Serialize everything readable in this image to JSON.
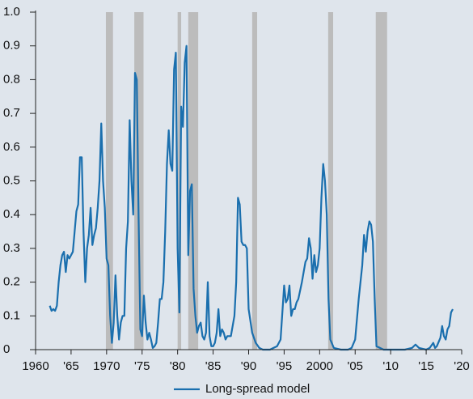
{
  "chart_data": {
    "type": "line",
    "x": [
      1962,
      1962.25,
      1962.5,
      1962.75,
      1963,
      1963.25,
      1963.5,
      1963.75,
      1964,
      1964.25,
      1964.5,
      1964.75,
      1965,
      1965.25,
      1965.5,
      1965.75,
      1966,
      1966.25,
      1966.5,
      1966.75,
      1967,
      1967.25,
      1967.5,
      1967.75,
      1968,
      1968.25,
      1968.5,
      1968.75,
      1969,
      1969.25,
      1969.5,
      1969.75,
      1970,
      1970.25,
      1970.5,
      1970.75,
      1971,
      1971.25,
      1971.5,
      1971.75,
      1972,
      1972.25,
      1972.5,
      1972.75,
      1973,
      1973.25,
      1973.5,
      1973.75,
      1974,
      1974.25,
      1974.5,
      1974.75,
      1975,
      1975.25,
      1975.5,
      1975.75,
      1976,
      1976.25,
      1976.5,
      1976.75,
      1977,
      1977.25,
      1977.5,
      1977.75,
      1978,
      1978.25,
      1978.5,
      1978.75,
      1979,
      1979.25,
      1979.5,
      1979.75,
      1980,
      1980.25,
      1980.5,
      1980.75,
      1981,
      1981.25,
      1981.5,
      1981.75,
      1982,
      1982.25,
      1982.5,
      1982.75,
      1983,
      1983.25,
      1983.5,
      1983.75,
      1984,
      1984.25,
      1984.5,
      1984.75,
      1985,
      1985.25,
      1985.5,
      1985.75,
      1986,
      1986.25,
      1986.5,
      1986.75,
      1987,
      1987.5,
      1988,
      1988.25,
      1988.5,
      1988.75,
      1989,
      1989.25,
      1989.5,
      1989.75,
      1990,
      1990.5,
      1991,
      1991.5,
      1992,
      1993,
      1993.5,
      1994,
      1994.5,
      1995,
      1995.25,
      1995.5,
      1995.75,
      1996,
      1996.25,
      1996.5,
      1996.75,
      1997,
      1997.5,
      1998,
      1998.25,
      1998.5,
      1998.75,
      1999,
      1999.25,
      1999.5,
      1999.75,
      2000,
      2000.25,
      2000.5,
      2000.75,
      2001,
      2001.25,
      2001.5,
      2002,
      2003,
      2004,
      2004.5,
      2005,
      2005.5,
      2006,
      2006.25,
      2006.5,
      2006.75,
      2007,
      2007.25,
      2007.5,
      2007.75,
      2008,
      2008.5,
      2009,
      2010,
      2012,
      2013,
      2013.5,
      2014,
      2015,
      2015.5,
      2016,
      2016.25,
      2016.5,
      2017,
      2017.25,
      2017.5,
      2017.75,
      2018,
      2018.25,
      2018.5,
      2018.75
    ],
    "series": [
      {
        "name": "Long-spread model",
        "color": "#1a6fae",
        "values": [
          0.13,
          0.115,
          0.12,
          0.115,
          0.13,
          0.2,
          0.25,
          0.28,
          0.29,
          0.23,
          0.28,
          0.27,
          0.28,
          0.29,
          0.35,
          0.41,
          0.43,
          0.57,
          0.57,
          0.35,
          0.2,
          0.3,
          0.34,
          0.42,
          0.31,
          0.34,
          0.36,
          0.42,
          0.5,
          0.67,
          0.5,
          0.42,
          0.27,
          0.25,
          0.1,
          0.02,
          0.08,
          0.22,
          0.1,
          0.03,
          0.08,
          0.1,
          0.1,
          0.3,
          0.38,
          0.68,
          0.5,
          0.4,
          0.82,
          0.8,
          0.4,
          0.06,
          0.04,
          0.16,
          0.08,
          0.03,
          0.05,
          0.03,
          0.005,
          0.01,
          0.02,
          0.08,
          0.15,
          0.15,
          0.2,
          0.35,
          0.55,
          0.65,
          0.55,
          0.53,
          0.83,
          0.88,
          0.3,
          0.11,
          0.72,
          0.66,
          0.85,
          0.9,
          0.28,
          0.47,
          0.49,
          0.18,
          0.1,
          0.05,
          0.07,
          0.08,
          0.04,
          0.03,
          0.05,
          0.2,
          0.04,
          0.01,
          0.01,
          0.02,
          0.05,
          0.12,
          0.04,
          0.06,
          0.05,
          0.03,
          0.04,
          0.04,
          0.1,
          0.2,
          0.45,
          0.43,
          0.32,
          0.31,
          0.31,
          0.3,
          0.12,
          0.05,
          0.02,
          0.005,
          0,
          0,
          0.005,
          0.01,
          0.03,
          0.19,
          0.14,
          0.15,
          0.19,
          0.1,
          0.12,
          0.12,
          0.14,
          0.15,
          0.2,
          0.26,
          0.27,
          0.33,
          0.3,
          0.21,
          0.28,
          0.23,
          0.25,
          0.3,
          0.45,
          0.55,
          0.5,
          0.4,
          0.15,
          0.03,
          0.005,
          0,
          0,
          0.005,
          0.03,
          0.15,
          0.25,
          0.34,
          0.29,
          0.35,
          0.38,
          0.37,
          0.32,
          0.15,
          0.01,
          0.005,
          0,
          0,
          0,
          0.005,
          0.015,
          0.005,
          0,
          0.005,
          0.02,
          0.005,
          0.01,
          0.035,
          0.07,
          0.04,
          0.03,
          0.06,
          0.07,
          0.11,
          0.12
        ]
      }
    ],
    "shaded_ranges": [
      [
        1969.9,
        1970.9
      ],
      [
        1973.9,
        1975.2
      ],
      [
        1980,
        1980.5
      ],
      [
        1981.5,
        1982.9
      ],
      [
        1990.5,
        1991.2
      ],
      [
        2001.2,
        2001.9
      ],
      [
        2007.9,
        2009.5
      ]
    ],
    "shade_color": "#bcbcbc",
    "xlim": [
      1960,
      2020
    ],
    "xticks": [
      1960,
      {
        "value": 1965,
        "label": "'65"
      },
      1970,
      {
        "value": 1975,
        "label": "'75"
      },
      {
        "value": 1980,
        "label": "'80"
      },
      {
        "value": 1985,
        "label": "'85"
      },
      {
        "value": 1990,
        "label": "'90"
      },
      {
        "value": 1995,
        "label": "'95"
      },
      2000,
      {
        "value": 2005,
        "label": "'05"
      },
      {
        "value": 2010,
        "label": "'10"
      },
      {
        "value": 2015,
        "label": "'15"
      },
      {
        "value": 2020,
        "label": "'20"
      }
    ],
    "ylim": [
      0,
      1
    ],
    "yticks": [
      0,
      0.1,
      0.2,
      0.3,
      0.4,
      0.5,
      0.6,
      0.7,
      0.8,
      0.9,
      {
        "value": 1,
        "label": "1.0"
      }
    ],
    "legend": "bottom"
  }
}
